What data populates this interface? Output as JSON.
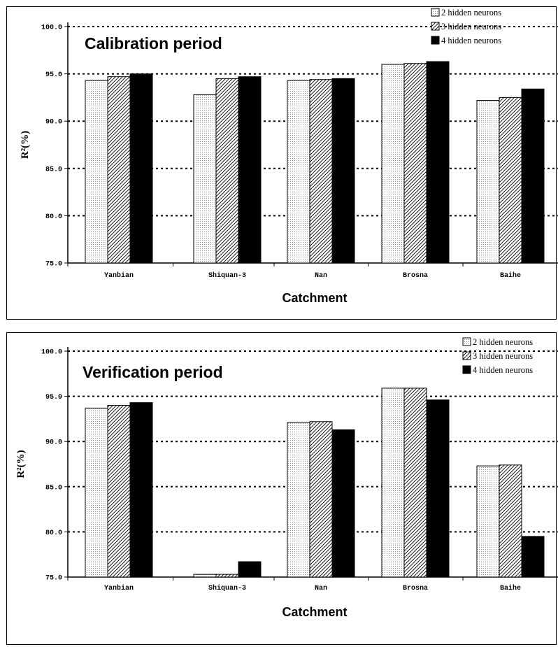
{
  "chart_data": [
    {
      "type": "bar",
      "title": "Calibration period",
      "xlabel": "Catchment",
      "ylabel": "R²(%)",
      "ylim": [
        75,
        100
      ],
      "yticks": [
        "75.0",
        "80.0",
        "85.0",
        "90.0",
        "95.0",
        "100.0"
      ],
      "categories": [
        "Yanbian",
        "Shiquan-3",
        "Nan",
        "Brosna",
        "Baihe"
      ],
      "legend_position": "top-right",
      "series": [
        {
          "name": "2 hidden neurons",
          "pattern": "dots",
          "values": [
            94.3,
            92.8,
            94.3,
            96.0,
            92.2
          ]
        },
        {
          "name": "3 hidden neurons",
          "pattern": "hatch",
          "values": [
            94.7,
            94.5,
            94.4,
            96.1,
            92.5
          ]
        },
        {
          "name": "4 hidden neurons",
          "pattern": "solid",
          "values": [
            95.0,
            94.7,
            94.5,
            96.3,
            93.4
          ]
        }
      ]
    },
    {
      "type": "bar",
      "title": "Verification period",
      "xlabel": "Catchment",
      "ylabel": "R²(%)",
      "ylim": [
        75,
        100
      ],
      "yticks": [
        "75.0",
        "80.0",
        "85.0",
        "90.0",
        "95.0",
        "100.0"
      ],
      "categories": [
        "Yanbian",
        "Shiquan-3",
        "Nan",
        "Brosna",
        "Baihe"
      ],
      "legend_position": "top-right",
      "series": [
        {
          "name": "2 hidden neurons",
          "pattern": "dots",
          "values": [
            93.7,
            75.3,
            92.1,
            95.9,
            87.3
          ]
        },
        {
          "name": "3 hidden neurons",
          "pattern": "hatch",
          "values": [
            94.0,
            75.3,
            92.2,
            95.9,
            87.4
          ]
        },
        {
          "name": "4 hidden neurons",
          "pattern": "solid",
          "values": [
            94.3,
            76.7,
            91.3,
            94.6,
            79.5
          ]
        }
      ]
    }
  ],
  "colors": {
    "solid": "#000000",
    "background": "#ffffff",
    "grid": "#000000"
  }
}
